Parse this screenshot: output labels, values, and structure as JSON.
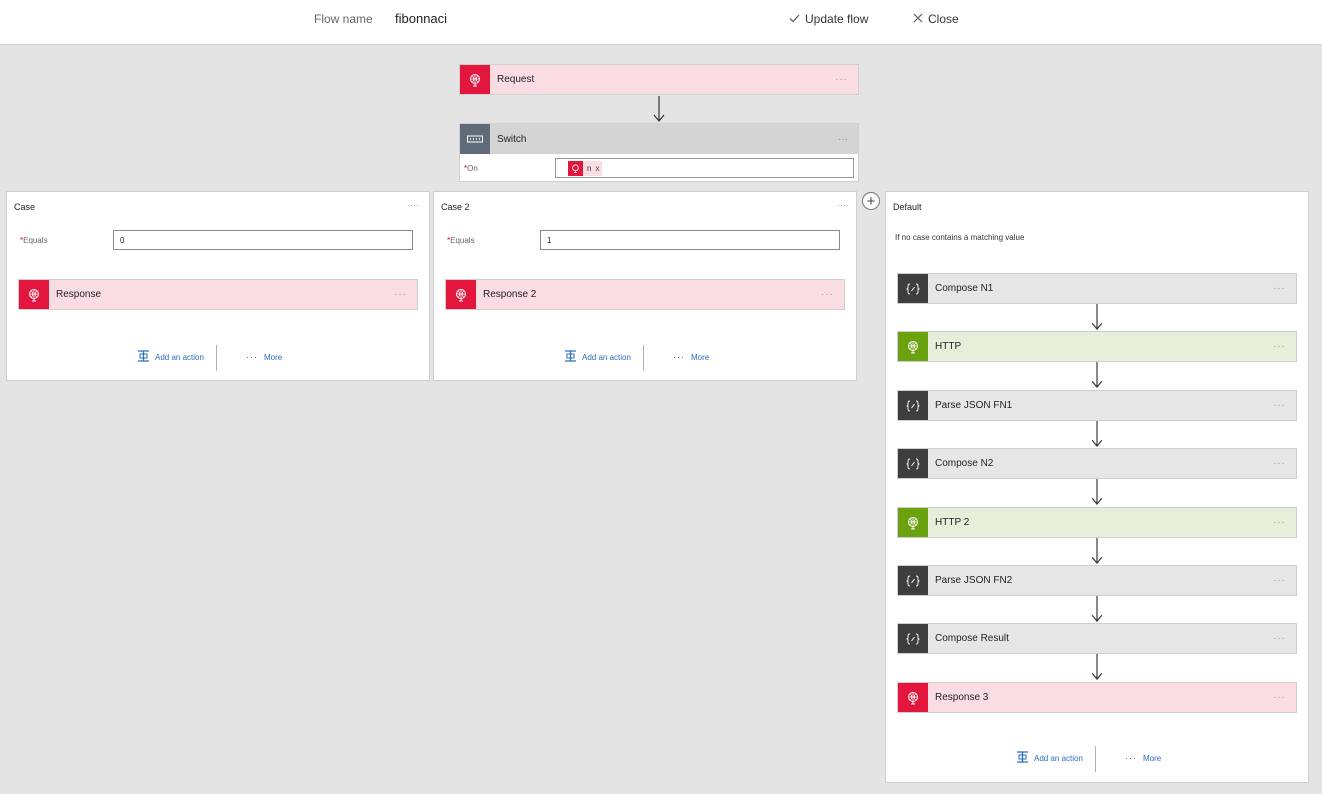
{
  "header": {
    "flow_label": "Flow name",
    "flow_name": "fibonnaci",
    "update_label": "Update flow",
    "close_label": "Close"
  },
  "trigger": {
    "label": "Request",
    "dots": "···"
  },
  "switch": {
    "label": "Switch",
    "dots": "···",
    "on_label": "On",
    "required_mark": "*",
    "token_label": "n",
    "token_remove": "x"
  },
  "cases": [
    {
      "title": "Case",
      "equals_label": "Equals",
      "equals_value": "0",
      "action_label": "Response",
      "add_action": "Add an action",
      "more": "More",
      "dots": "···"
    },
    {
      "title": "Case 2",
      "equals_label": "Equals",
      "equals_value": "1",
      "action_label": "Response 2",
      "add_action": "Add an action",
      "more": "More",
      "dots": "···"
    }
  ],
  "default": {
    "title": "Default",
    "dots": "···",
    "description": "If no case contains a matching value",
    "actions": [
      {
        "label": "Compose N1",
        "kind": "compose"
      },
      {
        "label": "HTTP",
        "kind": "http"
      },
      {
        "label": "Parse JSON FN1",
        "kind": "compose"
      },
      {
        "label": "Compose N2",
        "kind": "compose"
      },
      {
        "label": "HTTP 2",
        "kind": "http"
      },
      {
        "label": "Parse JSON FN2",
        "kind": "compose"
      },
      {
        "label": "Compose Result",
        "kind": "compose"
      },
      {
        "label": "Response 3",
        "kind": "response"
      }
    ],
    "add_action": "Add an action",
    "more": "More"
  },
  "icons": {
    "check": "checkmark-icon",
    "close": "close-icon",
    "globe": "globe-icon",
    "compose": "compose-braces-icon",
    "switch": "switch-icon",
    "add_action": "add-action-icon",
    "plus": "plus-icon"
  },
  "colors": {
    "response_accent": "#e3173d",
    "http_accent": "#6aa10f",
    "compose_accent": "#3e3e3e",
    "switch_accent": "#5f6b79",
    "link": "#2a6cc0"
  }
}
